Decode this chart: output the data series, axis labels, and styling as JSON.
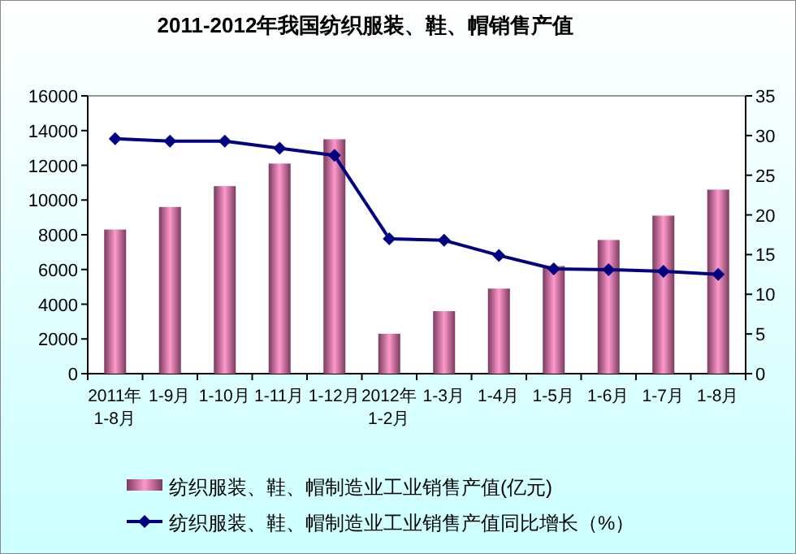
{
  "chart_data": {
    "type": "bar",
    "title": "2011-2012年我国纺织服装、鞋、帽销售产值",
    "categories": [
      "2011年\n1-8月",
      "1-9月",
      "1-10月",
      "1-11月",
      "1-12月",
      "2012年\n1-2月",
      "1-3月",
      "1-4月",
      "1-5月",
      "1-6月",
      "1-7月",
      "1-8月"
    ],
    "series": [
      {
        "name": "纺织服装、鞋、帽制造业工业销售产值(亿元)",
        "color": "#ff99cc",
        "values": [
          8300,
          9600,
          10800,
          12100,
          13500,
          2300,
          3600,
          4900,
          6200,
          7700,
          9100,
          10600
        ]
      },
      {
        "name": "纺织服装、鞋、帽制造业工业销售产值同比增长（%）",
        "type": "line",
        "axis": "y2",
        "color": "#000080",
        "marker": "diamond",
        "line_style": "solid",
        "values": [
          29.6,
          29.3,
          29.3,
          28.4,
          27.5,
          17.0,
          16.8,
          14.9,
          13.2,
          13.1,
          12.9,
          12.5
        ]
      }
    ],
    "ylim": [
      0,
      16000
    ],
    "yticks": [
      0,
      2000,
      4000,
      6000,
      8000,
      10000,
      12000,
      14000,
      16000
    ],
    "y2lim": [
      0,
      35
    ],
    "y2ticks": [
      0,
      5,
      10,
      15,
      20,
      25,
      30,
      35
    ],
    "grid": false,
    "legend": "bottom"
  }
}
